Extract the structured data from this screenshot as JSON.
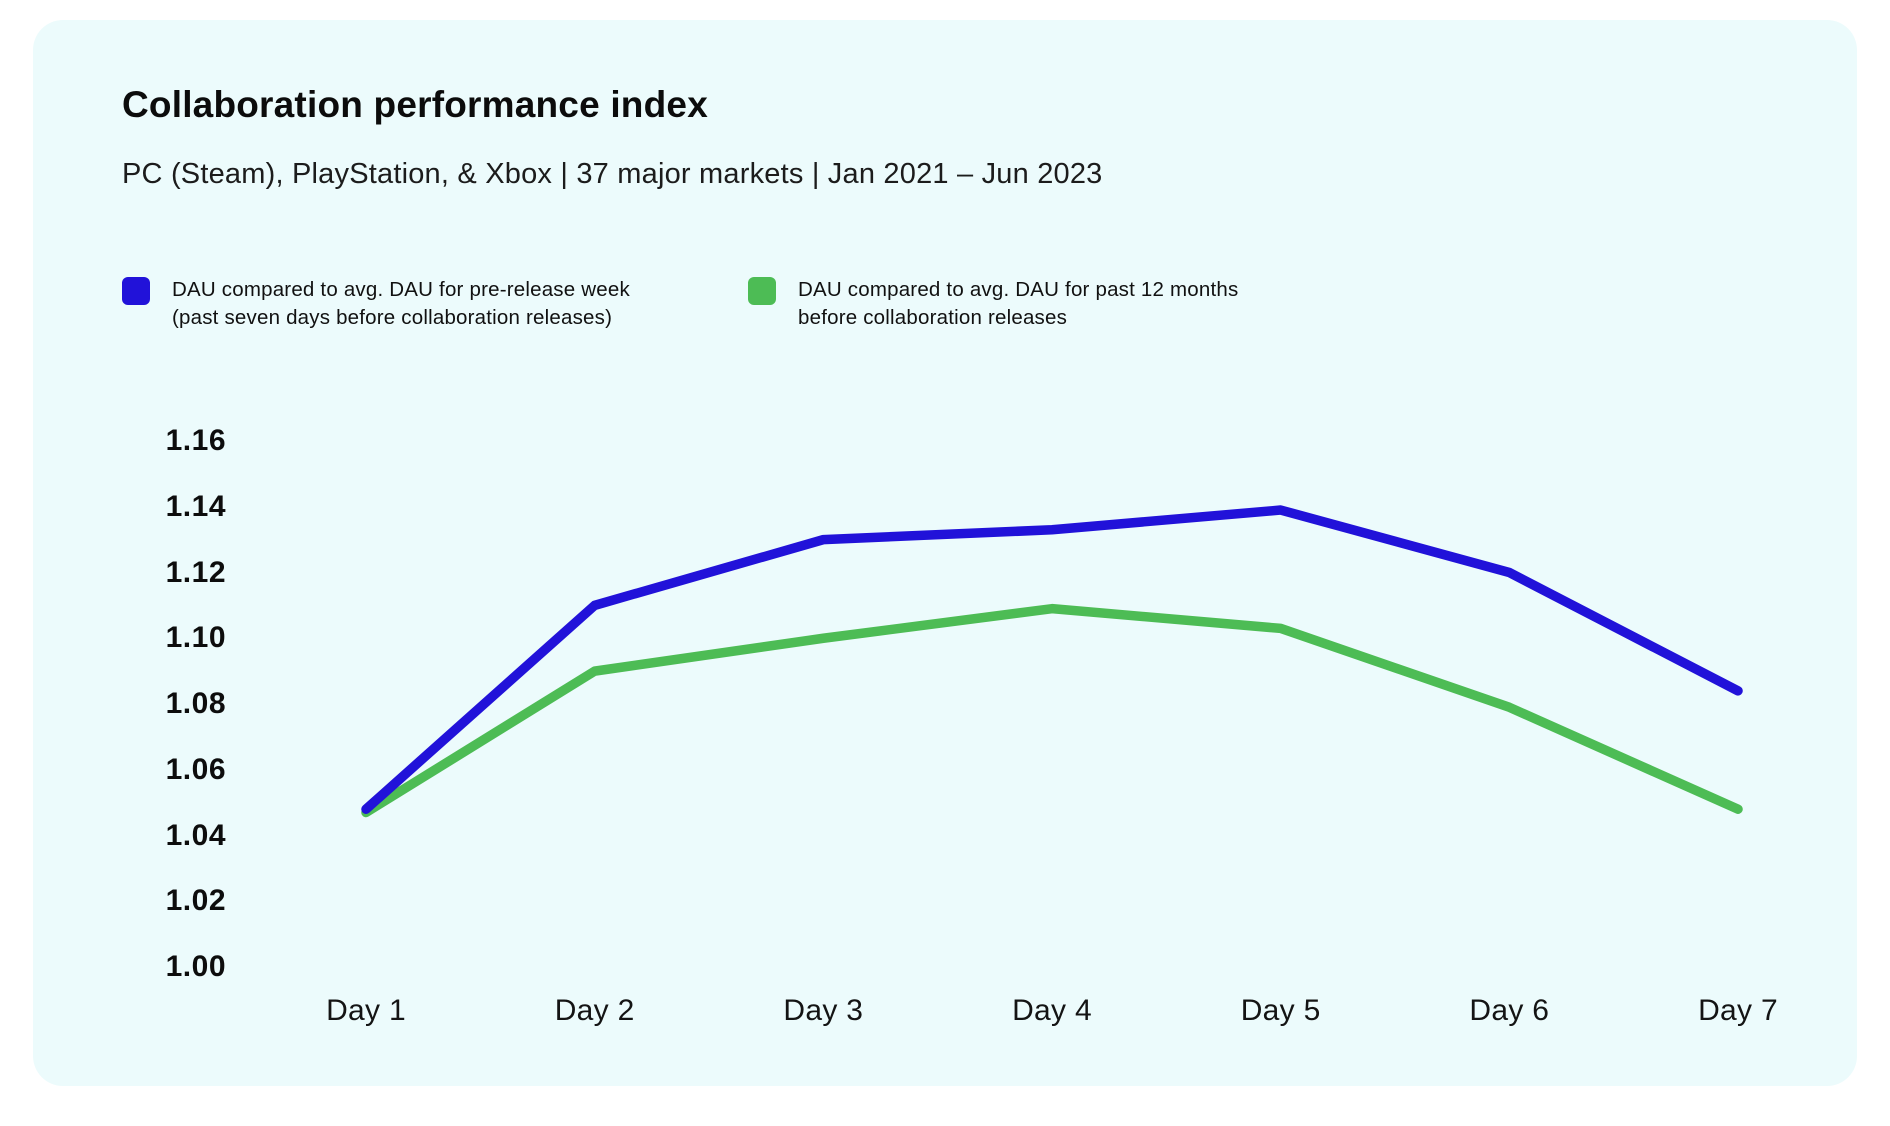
{
  "card": {
    "title": "Collaboration performance index",
    "subtitle": "PC (Steam), PlayStation, & Xbox | 37 major markets | Jan 2021 – Jun 2023"
  },
  "legend": {
    "position": "top-left",
    "items": [
      {
        "label": "DAU compared to avg. DAU for pre-release week\n(past seven days before collaboration releases)",
        "color": "#2112d9"
      },
      {
        "label": "DAU compared to avg. DAU for past 12 months\nbefore collaboration releases",
        "color": "#4dbc55"
      }
    ]
  },
  "chart_data": {
    "type": "line",
    "title": "Collaboration performance index",
    "xlabel": "",
    "ylabel": "",
    "categories": [
      "Day 1",
      "Day 2",
      "Day 3",
      "Day 4",
      "Day 5",
      "Day 6",
      "Day 7"
    ],
    "series": [
      {
        "name": "DAU compared to avg. DAU for pre-release week (past seven days before collaboration releases)",
        "color": "#2112d9",
        "values": [
          1.048,
          1.11,
          1.13,
          1.133,
          1.139,
          1.12,
          1.084
        ]
      },
      {
        "name": "DAU compared to avg. DAU for past 12 months before collaboration releases",
        "color": "#4dbc55",
        "values": [
          1.047,
          1.09,
          1.1,
          1.109,
          1.103,
          1.079,
          1.048
        ]
      }
    ],
    "ylim": [
      1.0,
      1.16
    ],
    "ytick_step": 0.02,
    "ytick_labels": [
      "1.16",
      "1.14",
      "1.12",
      "1.10",
      "1.08",
      "1.06",
      "1.04",
      "1.02",
      "1.00"
    ],
    "grid": false,
    "legend_position": "top"
  },
  "colors": {
    "page_background": "#ffffff",
    "card_background": "#ecfbfc",
    "text": "#0d0d0d"
  }
}
